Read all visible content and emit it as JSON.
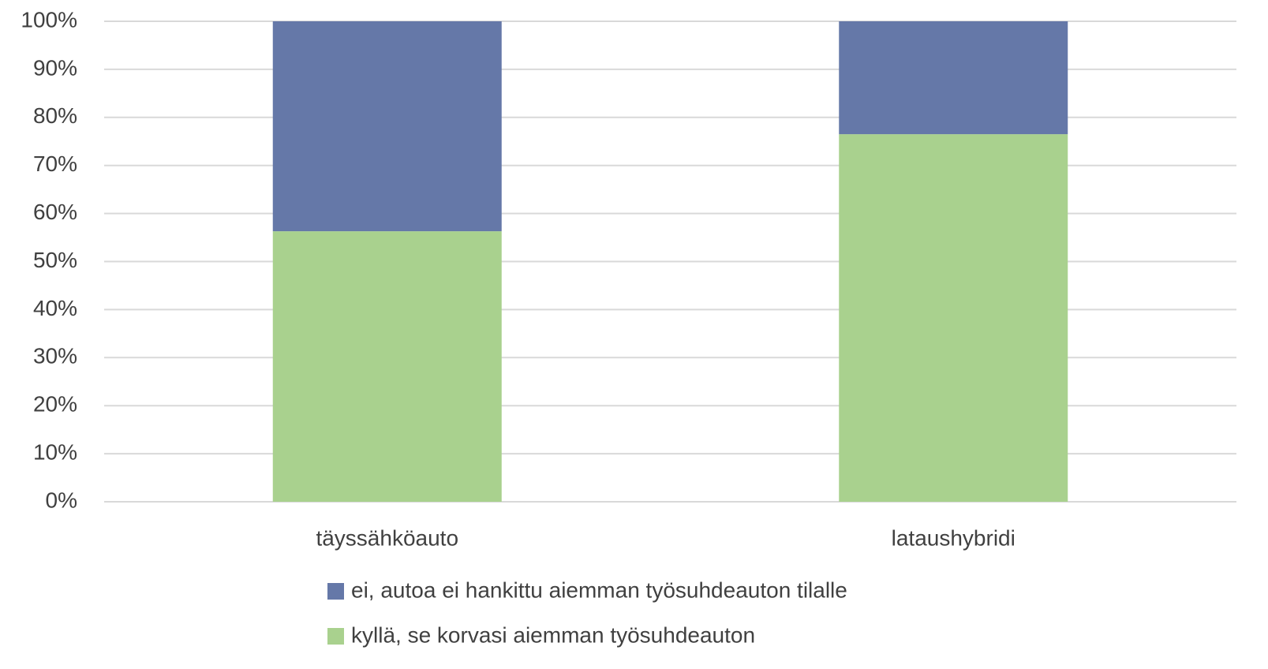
{
  "chart_data": {
    "type": "stacked_bar",
    "categories": [
      "täyssähköauto",
      "lataushybridi"
    ],
    "series": [
      {
        "name": "kyllä, se korvasi aiemman työsuhdeauton",
        "color": "#a9d18e",
        "values": [
          56.3,
          76.5
        ]
      },
      {
        "name": "ei, autoa ei hankittu aiemman työsuhdeauton tilalle",
        "color": "#6578a8",
        "values": [
          43.7,
          23.5
        ]
      }
    ],
    "ylim": [
      0,
      100
    ],
    "yticks": [
      {
        "value": 0,
        "label": "0%"
      },
      {
        "value": 10,
        "label": "10%"
      },
      {
        "value": 20,
        "label": "20%"
      },
      {
        "value": 30,
        "label": "30%"
      },
      {
        "value": 40,
        "label": "40%"
      },
      {
        "value": 50,
        "label": "50%"
      },
      {
        "value": 60,
        "label": "60%"
      },
      {
        "value": 70,
        "label": "70%"
      },
      {
        "value": 80,
        "label": "80%"
      },
      {
        "value": 90,
        "label": "90%"
      },
      {
        "value": 100,
        "label": "100%"
      }
    ],
    "grid": true,
    "legend": "bottom"
  }
}
